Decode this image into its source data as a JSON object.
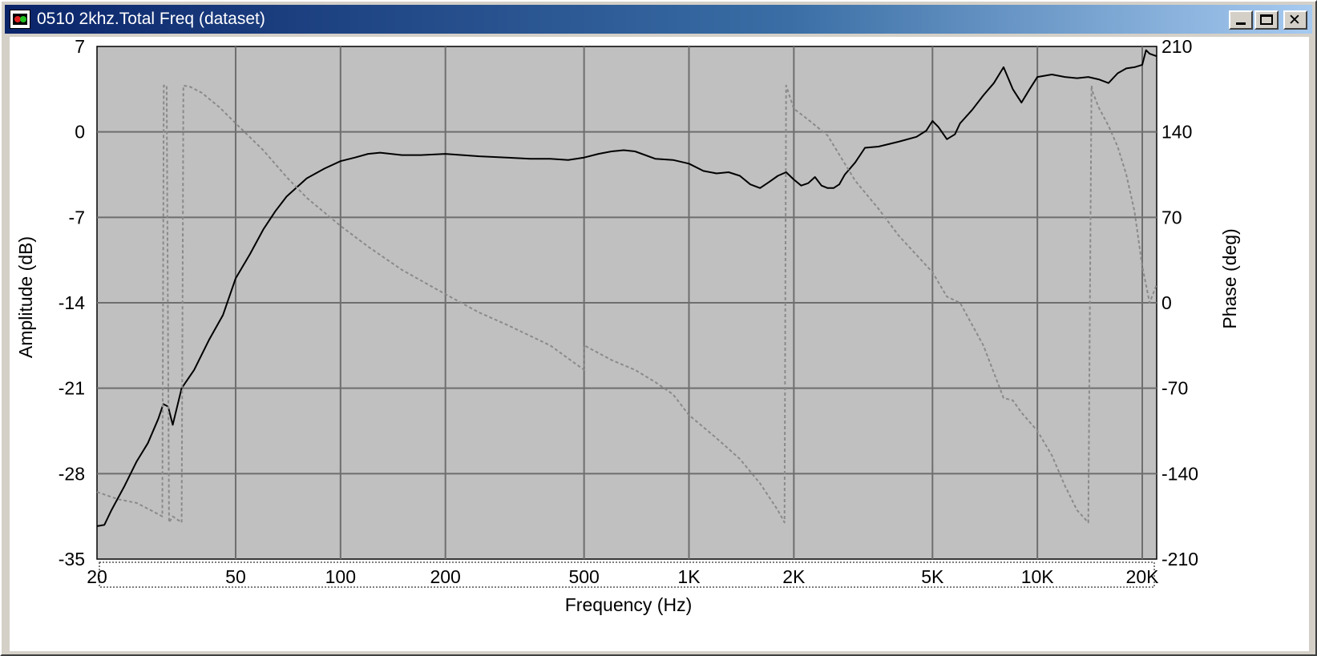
{
  "window": {
    "title": "0510 2khz.Total Freq (dataset)",
    "icon": "app-icon",
    "controls": {
      "minimize": "minimize-icon",
      "maximize": "maximize-icon",
      "close": "close-icon"
    }
  },
  "colors": {
    "plot_background": "#c0c0c0",
    "grid": "#6e6e6e",
    "amplitude": "#000000",
    "phase": "#8a8a8a"
  },
  "chart_data": {
    "type": "line",
    "title": "",
    "xlabel": "Frequency (Hz)",
    "ylabel": "Amplitude (dB)",
    "y2label": "Phase (deg)",
    "x_scale": "log",
    "xlim": [
      20,
      22000
    ],
    "ylim": [
      -35,
      7
    ],
    "y2lim": [
      -210,
      210
    ],
    "grid": true,
    "x_ticks": [
      {
        "value": 20,
        "label": "20"
      },
      {
        "value": 50,
        "label": "50"
      },
      {
        "value": 100,
        "label": "100"
      },
      {
        "value": 200,
        "label": "200"
      },
      {
        "value": 500,
        "label": "500"
      },
      {
        "value": 1000,
        "label": "1K"
      },
      {
        "value": 2000,
        "label": "2K"
      },
      {
        "value": 5000,
        "label": "5K"
      },
      {
        "value": 10000,
        "label": "10K"
      },
      {
        "value": 20000,
        "label": "20K"
      }
    ],
    "y_ticks": [
      {
        "value": 7,
        "label": "7"
      },
      {
        "value": 0,
        "label": "0"
      },
      {
        "value": -7,
        "label": "-7"
      },
      {
        "value": -14,
        "label": "-14"
      },
      {
        "value": -21,
        "label": "-21"
      },
      {
        "value": -28,
        "label": "-28"
      },
      {
        "value": -35,
        "label": "-35"
      }
    ],
    "y2_ticks": [
      {
        "value": 210,
        "label": "210"
      },
      {
        "value": 140,
        "label": "140"
      },
      {
        "value": 70,
        "label": "70"
      },
      {
        "value": 0,
        "label": "0"
      },
      {
        "value": -70,
        "label": "-70"
      },
      {
        "value": -140,
        "label": "-140"
      },
      {
        "value": -210,
        "label": "-210"
      }
    ],
    "series": [
      {
        "axis": "left",
        "style": "solid",
        "x": [
          20,
          21,
          22,
          24,
          26,
          28,
          30,
          31,
          32,
          33,
          35,
          38,
          42,
          46,
          50,
          55,
          60,
          65,
          70,
          80,
          90,
          100,
          110,
          120,
          130,
          150,
          170,
          200,
          250,
          300,
          350,
          400,
          450,
          500,
          550,
          600,
          650,
          700,
          800,
          900,
          1000,
          1100,
          1200,
          1300,
          1400,
          1500,
          1600,
          1700,
          1800,
          1900,
          2000,
          2100,
          2200,
          2300,
          2400,
          2500,
          2600,
          2700,
          2800,
          3000,
          3200,
          3500,
          4000,
          4500,
          4800,
          5000,
          5200,
          5500,
          5800,
          6000,
          6500,
          7000,
          7500,
          8000,
          8500,
          9000,
          9500,
          10000,
          11000,
          12000,
          13000,
          14000,
          15000,
          16000,
          17000,
          18000,
          19000,
          20000,
          20500,
          21000,
          22000
        ],
        "y": [
          -32.3,
          -32.2,
          -31,
          -29,
          -27,
          -25.5,
          -23.5,
          -22.3,
          -22.5,
          -24,
          -21,
          -19.5,
          -17,
          -15,
          -12,
          -10,
          -8,
          -6.5,
          -5.3,
          -3.8,
          -3,
          -2.4,
          -2.1,
          -1.8,
          -1.7,
          -1.9,
          -1.9,
          -1.8,
          -2,
          -2.1,
          -2.2,
          -2.2,
          -2.3,
          -2.1,
          -1.8,
          -1.6,
          -1.5,
          -1.6,
          -2.2,
          -2.3,
          -2.6,
          -3.2,
          -3.4,
          -3.3,
          -3.6,
          -4.3,
          -4.6,
          -4.1,
          -3.6,
          -3.3,
          -3.9,
          -4.4,
          -4.2,
          -3.7,
          -4.4,
          -4.6,
          -4.6,
          -4.3,
          -3.5,
          -2.5,
          -1.3,
          -1.2,
          -0.8,
          -0.4,
          0.1,
          0.9,
          0.4,
          -0.6,
          -0.2,
          0.7,
          1.8,
          3.0,
          4.0,
          5.3,
          3.5,
          2.4,
          3.5,
          4.5,
          4.7,
          4.5,
          4.4,
          4.5,
          4.3,
          4.0,
          4.8,
          5.2,
          5.3,
          5.5,
          6.7,
          6.4,
          6.2
        ]
      },
      {
        "axis": "right",
        "style": "dashed",
        "x": [
          20,
          23,
          26,
          29,
          30.8,
          31.1,
          31.7,
          32.2,
          33,
          35,
          35.4,
          37,
          40,
          45,
          50,
          60,
          70,
          80,
          100,
          120,
          150,
          200,
          250,
          300,
          400,
          500,
          501,
          600,
          700,
          800,
          900,
          1000,
          1200,
          1400,
          1600,
          1800,
          1880,
          1900,
          2000,
          2200,
          2500,
          3000,
          3500,
          4000,
          5000,
          5500,
          6000,
          7000,
          8000,
          8500,
          9000,
          10000,
          11000,
          12000,
          13000,
          14000,
          14300,
          14400,
          15000,
          16000,
          17000,
          18000,
          19000,
          20000,
          21000,
          22000
        ],
        "y": [
          -155,
          -161,
          -164,
          -171,
          -175,
          178,
          178,
          -180,
          -175,
          -180,
          178,
          177,
          172,
          160,
          147,
          125,
          103,
          86,
          63,
          46,
          27,
          7,
          -8,
          -18,
          -35,
          -55,
          -35,
          -47,
          -55,
          -65,
          -75,
          -92,
          -111,
          -128,
          -148,
          -170,
          -180,
          178,
          159,
          150,
          137,
          100,
          77,
          55,
          25,
          5,
          0,
          -35,
          -78,
          -80,
          -90,
          -105,
          -125,
          -150,
          -170,
          -180,
          178,
          173,
          160,
          145,
          128,
          105,
          75,
          30,
          0,
          15
        ]
      }
    ]
  }
}
